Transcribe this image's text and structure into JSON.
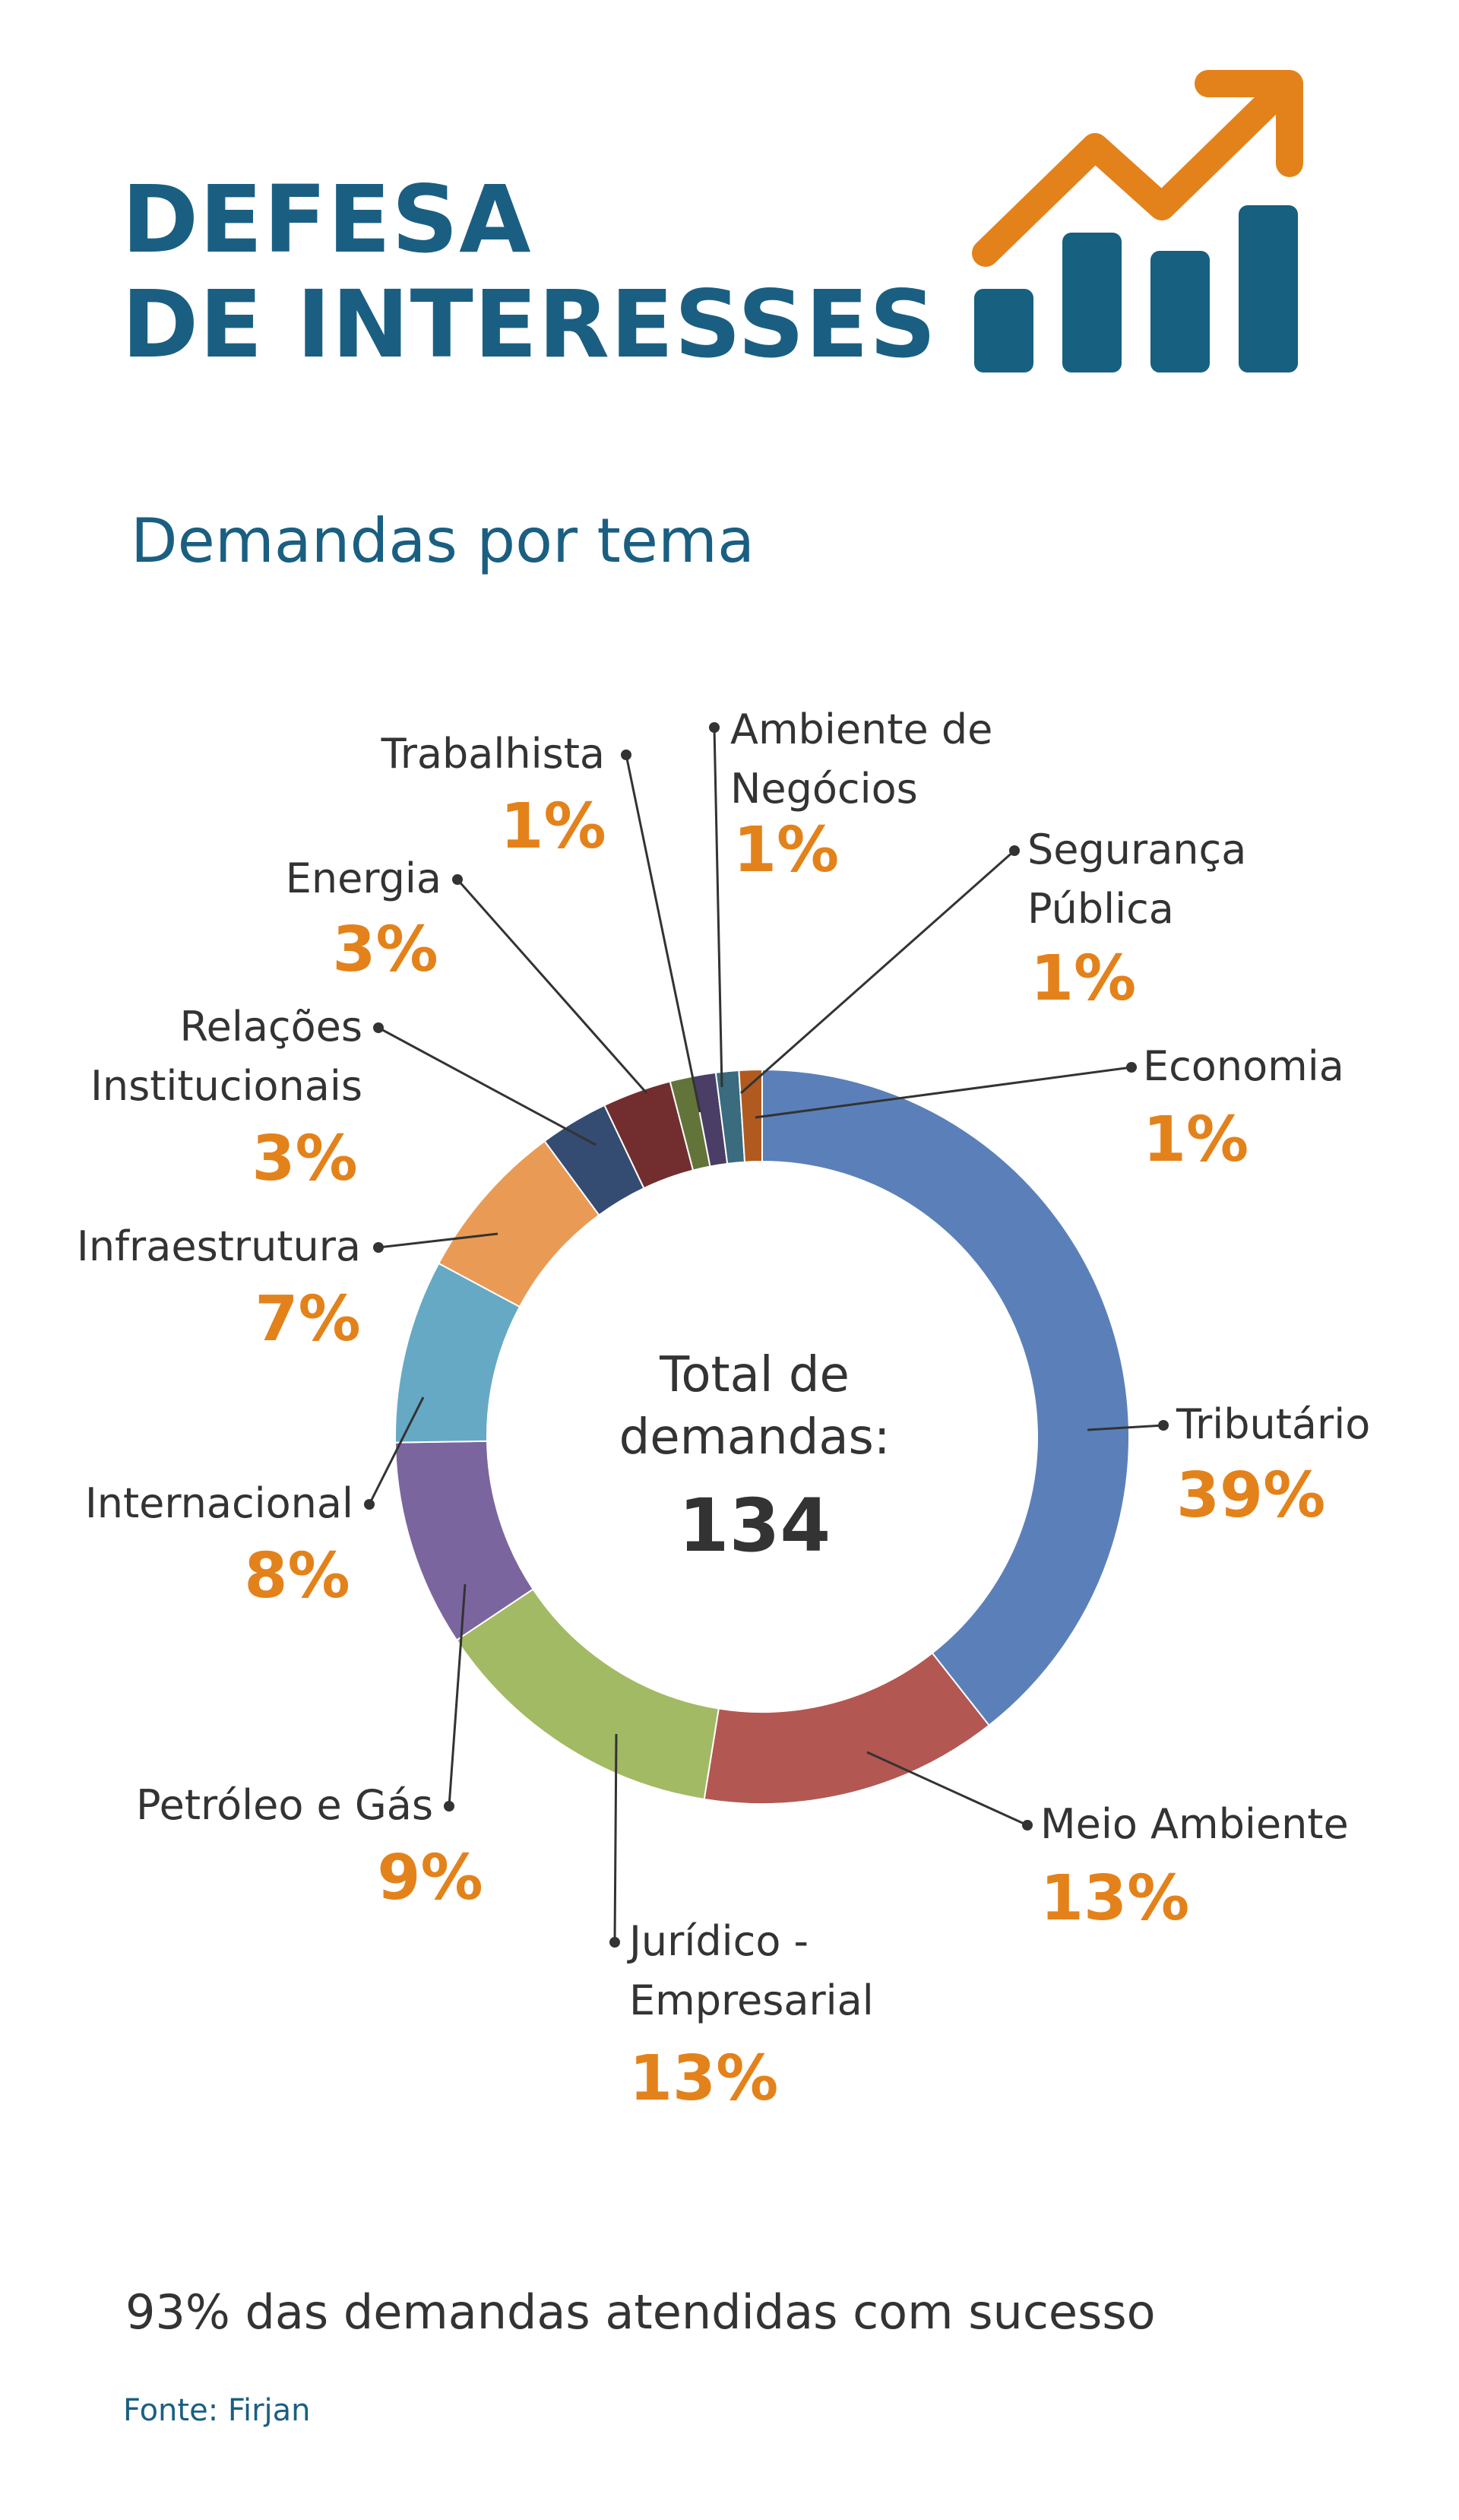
{
  "header": {
    "title_line1": "DEFESA",
    "title_line2": "DE INTERESSES",
    "icon": "bar-chart-trending-up-icon",
    "title_color": "#1a5f82",
    "accent_color": "#e3821b"
  },
  "subtitle": "Demandas por tema",
  "chart_data": {
    "type": "donut",
    "center_label_line1": "Total de",
    "center_label_line2": "demandas:",
    "total": "134",
    "unit": "%",
    "categories": [
      "Tributário",
      "Meio Ambiente",
      "Jurídico - Empresarial",
      "Petróleo e Gás",
      "Internacional",
      "Infraestrutura",
      "Relações Institucionais",
      "Energia",
      "Trabalhista",
      "Ambiente de Negócios",
      "Segurança Pública",
      "Economia"
    ],
    "values": [
      39,
      13,
      13,
      9,
      8,
      7,
      3,
      3,
      1,
      1,
      1,
      1
    ],
    "slices": [
      {
        "label_lines": [
          "Tributário"
        ],
        "pct": "39%",
        "color": "#5b80b9"
      },
      {
        "label_lines": [
          "Meio Ambiente"
        ],
        "pct": "13%",
        "color": "#b35752"
      },
      {
        "label_lines": [
          "Jurídico -",
          "Empresarial"
        ],
        "pct": "13%",
        "color": "#a2ba64"
      },
      {
        "label_lines": [
          "Petróleo e Gás"
        ],
        "pct": "9%",
        "color": "#7b659e"
      },
      {
        "label_lines": [
          "Internacional"
        ],
        "pct": "8%",
        "color": "#66a9c4"
      },
      {
        "label_lines": [
          "Infraestrutura"
        ],
        "pct": "7%",
        "color": "#e99b55"
      },
      {
        "label_lines": [
          "Relações",
          "Institucionais"
        ],
        "pct": "3%",
        "color": "#344b72"
      },
      {
        "label_lines": [
          "Energia"
        ],
        "pct": "3%",
        "color": "#722e2e"
      },
      {
        "label_lines": [
          "Trabalhista"
        ],
        "pct": "1%",
        "color": "#62743a"
      },
      {
        "label_lines": [
          "Ambiente de",
          "Negócios"
        ],
        "pct": "1%",
        "color": "#4a3d66"
      },
      {
        "label_lines": [
          "Segurança",
          "Pública"
        ],
        "pct": "1%",
        "color": "#3a6b7e"
      },
      {
        "label_lines": [
          "Economia"
        ],
        "pct": "1%",
        "color": "#b05a20"
      }
    ]
  },
  "footer": "93% das demandas atendidas com sucesso",
  "source": "Fonte: Firjan"
}
